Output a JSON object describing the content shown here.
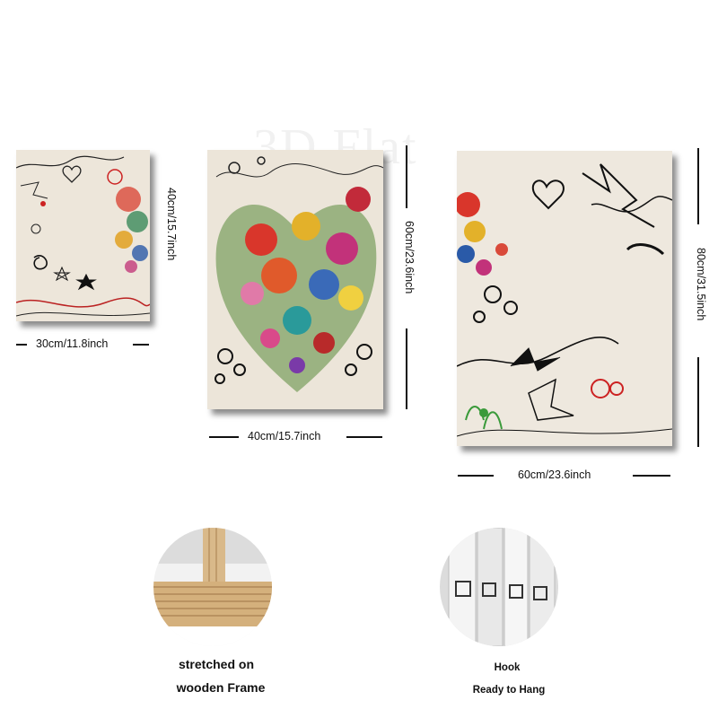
{
  "watermark": "3D Flat",
  "panels": [
    {
      "width_label": "30cm/11.8inch",
      "height_label": "40cm/15.7inch"
    },
    {
      "width_label": "40cm/15.7inch",
      "height_label": "60cm/23.6inch"
    },
    {
      "width_label": "60cm/23.6inch",
      "height_label": "80cm/31.5inch"
    }
  ],
  "features": {
    "frame": {
      "line1": "stretched on",
      "line2": "wooden Frame"
    },
    "hook": {
      "line1": "Hook",
      "line2": "Ready to Hang"
    }
  }
}
